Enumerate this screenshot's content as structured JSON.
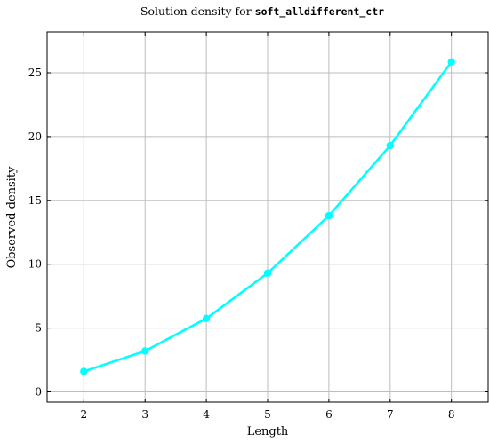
{
  "chart_data": {
    "type": "line",
    "title_prefix": "Solution density for ",
    "title_code": "soft_alldifferent_ctr",
    "xlabel": "Length",
    "ylabel": "Observed density",
    "x": [
      2,
      3,
      4,
      5,
      6,
      7,
      8
    ],
    "series": [
      {
        "values": [
          1.6,
          3.2,
          5.75,
          9.3,
          13.8,
          19.3,
          25.85
        ],
        "color": "#00ffff"
      }
    ],
    "xticks": [
      2,
      3,
      4,
      5,
      6,
      7,
      8
    ],
    "yticks": [
      0,
      5,
      10,
      15,
      20,
      25
    ],
    "xlim": [
      1.4,
      8.6
    ],
    "ylim": [
      -0.8,
      28.2
    ],
    "grid": true,
    "legend": false,
    "line_color": "#00ffff",
    "grid_color": "#bdbdbd"
  }
}
